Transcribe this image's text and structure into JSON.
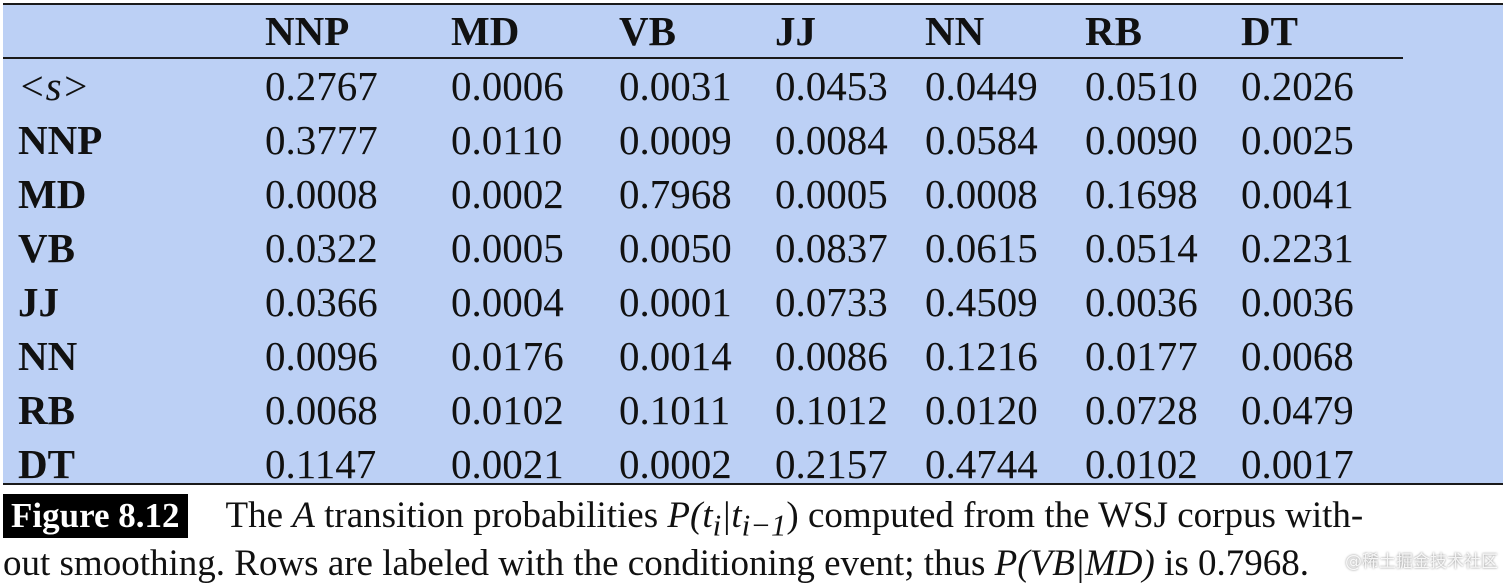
{
  "table": {
    "columns": [
      "",
      "NNP",
      "MD",
      "VB",
      "JJ",
      "NN",
      "RB",
      "DT"
    ],
    "rows": [
      {
        "label": "<s>",
        "values": [
          "0.2767",
          "0.0006",
          "0.0031",
          "0.0453",
          "0.0449",
          "0.0510",
          "0.2026"
        ]
      },
      {
        "label": "NNP",
        "values": [
          "0.3777",
          "0.0110",
          "0.0009",
          "0.0084",
          "0.0584",
          "0.0090",
          "0.0025"
        ]
      },
      {
        "label": "MD",
        "values": [
          "0.0008",
          "0.0002",
          "0.7968",
          "0.0005",
          "0.0008",
          "0.1698",
          "0.0041"
        ]
      },
      {
        "label": "VB",
        "values": [
          "0.0322",
          "0.0005",
          "0.0050",
          "0.0837",
          "0.0615",
          "0.0514",
          "0.2231"
        ]
      },
      {
        "label": "JJ",
        "values": [
          "0.0366",
          "0.0004",
          "0.0001",
          "0.0733",
          "0.4509",
          "0.0036",
          "0.0036"
        ]
      },
      {
        "label": "NN",
        "values": [
          "0.0096",
          "0.0176",
          "0.0014",
          "0.0086",
          "0.1216",
          "0.0177",
          "0.0068"
        ]
      },
      {
        "label": "RB",
        "values": [
          "0.0068",
          "0.0102",
          "0.1011",
          "0.1012",
          "0.0120",
          "0.0728",
          "0.0479"
        ]
      },
      {
        "label": "DT",
        "values": [
          "0.1147",
          "0.0021",
          "0.0002",
          "0.2157",
          "0.4744",
          "0.0102",
          "0.0017"
        ]
      }
    ]
  },
  "caption": {
    "figure_label": "Figure 8.12",
    "line1_a": "The ",
    "line1_math_a": "A",
    "line1_b": " transition probabilities ",
    "line1_math_p": "P(t",
    "line1_math_i": "i",
    "line1_math_mid": "|t",
    "line1_math_im1": "i−1",
    "line1_math_close": ")",
    "line1_c": " computed from the WSJ corpus with-",
    "line2_a": "out smoothing. Rows are labeled with the conditioning event; thus ",
    "line2_math": "P(VB|MD)",
    "line2_b": " is 0.7968."
  },
  "watermark": "@稀土掘金技术社区",
  "colors": {
    "table_background": "#bcd0f5",
    "figure_label_background": "#000000"
  }
}
